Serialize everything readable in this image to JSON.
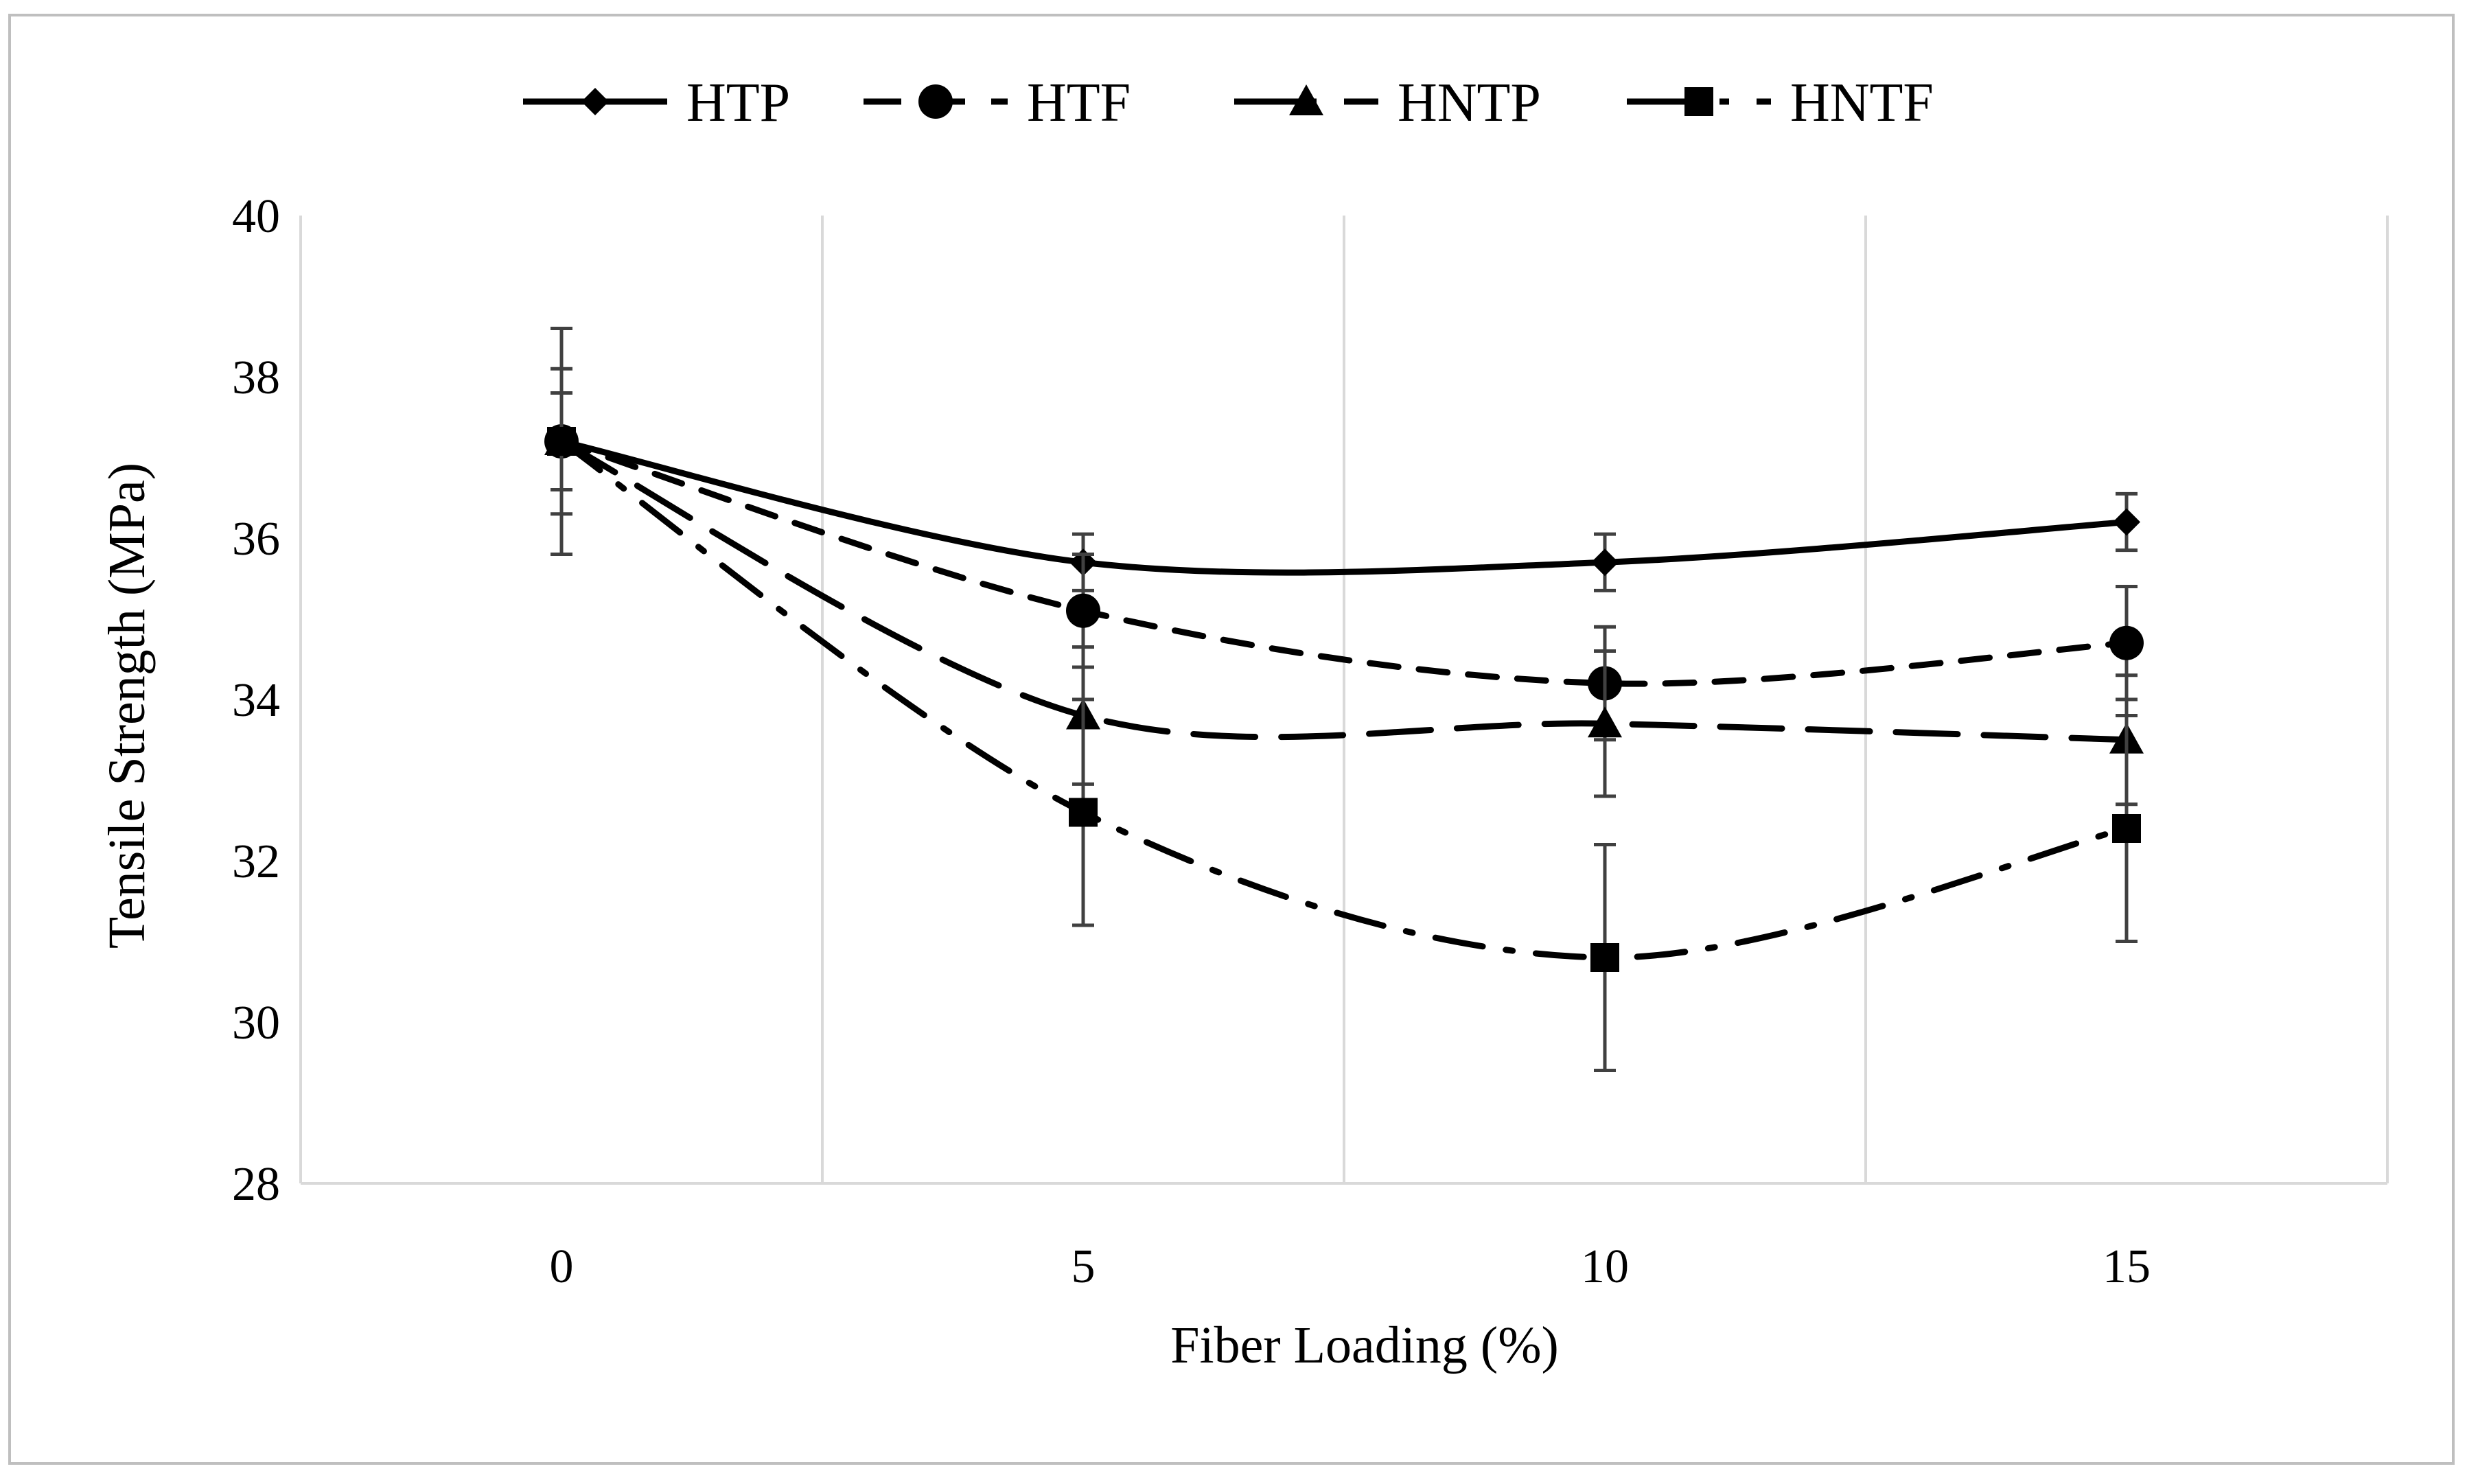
{
  "chart_data": {
    "type": "line",
    "title": "",
    "xlabel": "Fiber Loading (%)",
    "ylabel": "Tensile Strength (MPa)",
    "x": [
      0,
      5,
      10,
      15
    ],
    "x_ticks": [
      "0",
      "5",
      "10",
      "15"
    ],
    "xlim": [
      -2.5,
      17.5
    ],
    "ylim": [
      28,
      40
    ],
    "y_ticks": [
      28,
      30,
      32,
      34,
      36,
      38,
      40
    ],
    "grid": "vertical",
    "legend_position": "top",
    "series": [
      {
        "name": "HTP",
        "values": [
          37.2,
          35.7,
          35.7,
          36.2
        ],
        "errors": [
          1.4,
          0.35,
          0.35,
          0.35
        ],
        "marker": "diamond",
        "dash": "solid"
      },
      {
        "name": "HTF",
        "values": [
          37.2,
          35.1,
          34.2,
          34.7
        ],
        "errors": [
          0.9,
          0.7,
          0.7,
          0.7
        ],
        "marker": "circle",
        "dash": "dashed"
      },
      {
        "name": "HNTP",
        "values": [
          37.2,
          33.8,
          33.7,
          33.5
        ],
        "errors": [
          0.6,
          0.85,
          0.9,
          0.8
        ],
        "marker": "triangle",
        "dash": "long-dash"
      },
      {
        "name": "HNTF",
        "values": [
          37.2,
          32.6,
          30.8,
          32.4
        ],
        "errors": [
          0.6,
          1.4,
          1.4,
          1.4
        ],
        "marker": "square",
        "dash": "dash-dot"
      }
    ],
    "colors": {
      "line": "#000000",
      "grid": "#d9d9d9",
      "frame": "#bfbfbf",
      "error_bar": "#404040"
    }
  }
}
